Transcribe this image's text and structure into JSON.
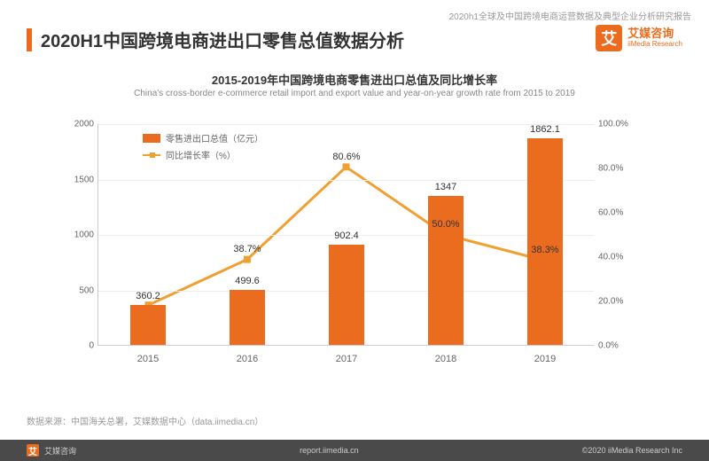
{
  "header_note": "2020h1全球及中国跨境电商运营数据及典型企业分析研究报告",
  "page_title": "2020H1中国跨境电商进出口零售总值数据分析",
  "logo": {
    "cn": "艾媒咨询",
    "en": "iiMedia Research",
    "glyph": "艾"
  },
  "chart": {
    "type": "bar+line",
    "title_cn": "2015-2019年中国跨境电商零售进出口总值及同比增长率",
    "title_en": "China's cross-border e-commerce retail import and export value and year-on-year growth rate from 2015 to 2019",
    "categories": [
      "2015",
      "2016",
      "2017",
      "2018",
      "2019"
    ],
    "bar_values": [
      360.2,
      499.6,
      902.4,
      1347,
      1862.1
    ],
    "bar_color": "#ec6c1f",
    "bar_width_ratio": 0.35,
    "growth_values": [
      null,
      38.7,
      80.6,
      50.0,
      38.3
    ],
    "growth_labels": [
      "",
      "38.7%",
      "80.6%",
      "50.0%",
      "38.3%"
    ],
    "line_color": "#f0a030",
    "y_left": {
      "min": 0,
      "max": 2000,
      "step": 500,
      "ticks": [
        0,
        500,
        1000,
        1500,
        2000
      ]
    },
    "y_right": {
      "min": 0,
      "max": 100,
      "step": 20,
      "format": "%",
      "ticks": [
        "0.0%",
        "20.0%",
        "40.0%",
        "60.0%",
        "80.0%",
        "100.0%"
      ]
    },
    "legend_bar": "零售进出口总值（亿元）",
    "legend_line": "同比增长率（%）",
    "background": "#ffffff",
    "grid_color": "#eeeeee",
    "axis_color": "#cccccc",
    "label_fontsize": 11,
    "tick_fontsize": 10
  },
  "source": "数据来源：中国海关总署，艾媒数据中心（data.iimedia.cn）",
  "footer": {
    "center": "report.iimedia.cn",
    "right": "©2020 iiMedia Research Inc"
  }
}
